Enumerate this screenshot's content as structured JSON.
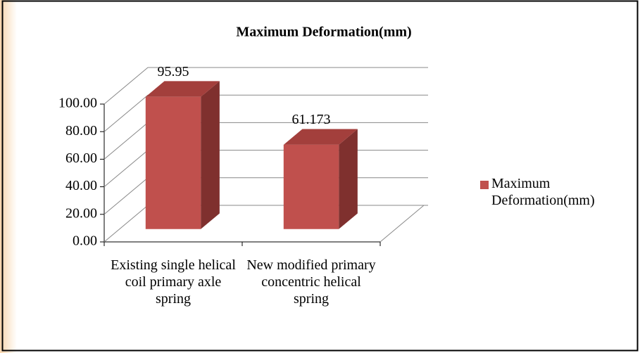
{
  "chart_data": {
    "type": "bar3d",
    "title": "Maximum Deformation(mm)",
    "categories": [
      "Existing single helical coil primary axle spring",
      "New modified primary concentric helical spring"
    ],
    "series": [
      {
        "name": "Maximum Deformation(mm)",
        "color": "#c0504d",
        "values": [
          95.95,
          61.173
        ]
      }
    ],
    "ylim": [
      0,
      100
    ],
    "yticks": [
      {
        "value": 0,
        "label": "0.00"
      },
      {
        "value": 20,
        "label": "20.00"
      },
      {
        "value": 40,
        "label": "40.00"
      },
      {
        "value": 60,
        "label": "60.00"
      },
      {
        "value": 80,
        "label": "80.00"
      },
      {
        "value": 100,
        "label": "100.00"
      }
    ],
    "grid": true,
    "legend": "right"
  }
}
